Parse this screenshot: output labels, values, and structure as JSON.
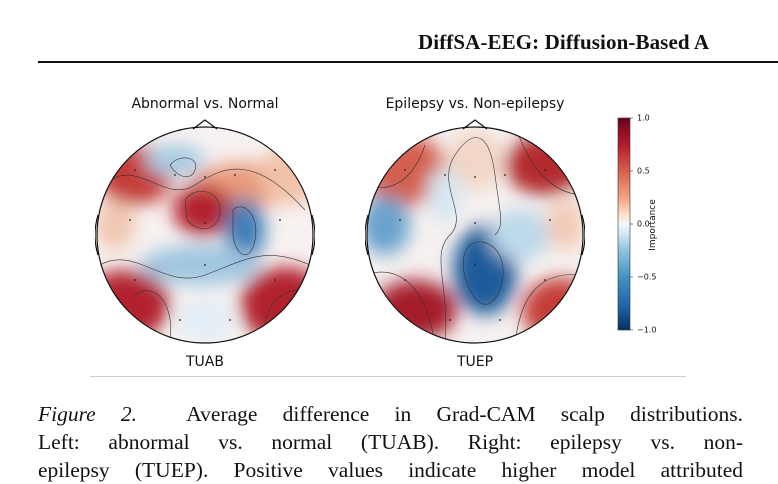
{
  "header": {
    "running_title": "DiffSA-EEG: Diffusion-Based A"
  },
  "figure": {
    "panels": [
      {
        "title": "Abnormal vs. Normal",
        "label": "TUAB"
      },
      {
        "title": "Epilepsy vs. Non-epilepsy",
        "label": "TUEP"
      }
    ],
    "colorbar": {
      "label": "Importance",
      "ticks": [
        "1.0",
        "0.5",
        "0.0",
        "−0.5",
        "−1.0"
      ],
      "colors": {
        "top": "#67001f",
        "mid": "#f7f7f7",
        "bottom": "#053061"
      }
    }
  },
  "caption": {
    "number": "Figure 2.",
    "line1": "Average difference in Grad-CAM scalp distributions.",
    "line2": "Left: abnormal vs. normal (TUAB). Right: epilepsy vs. non-",
    "line3": "epilepsy (TUEP). Positive values indicate higher model attributed"
  }
}
